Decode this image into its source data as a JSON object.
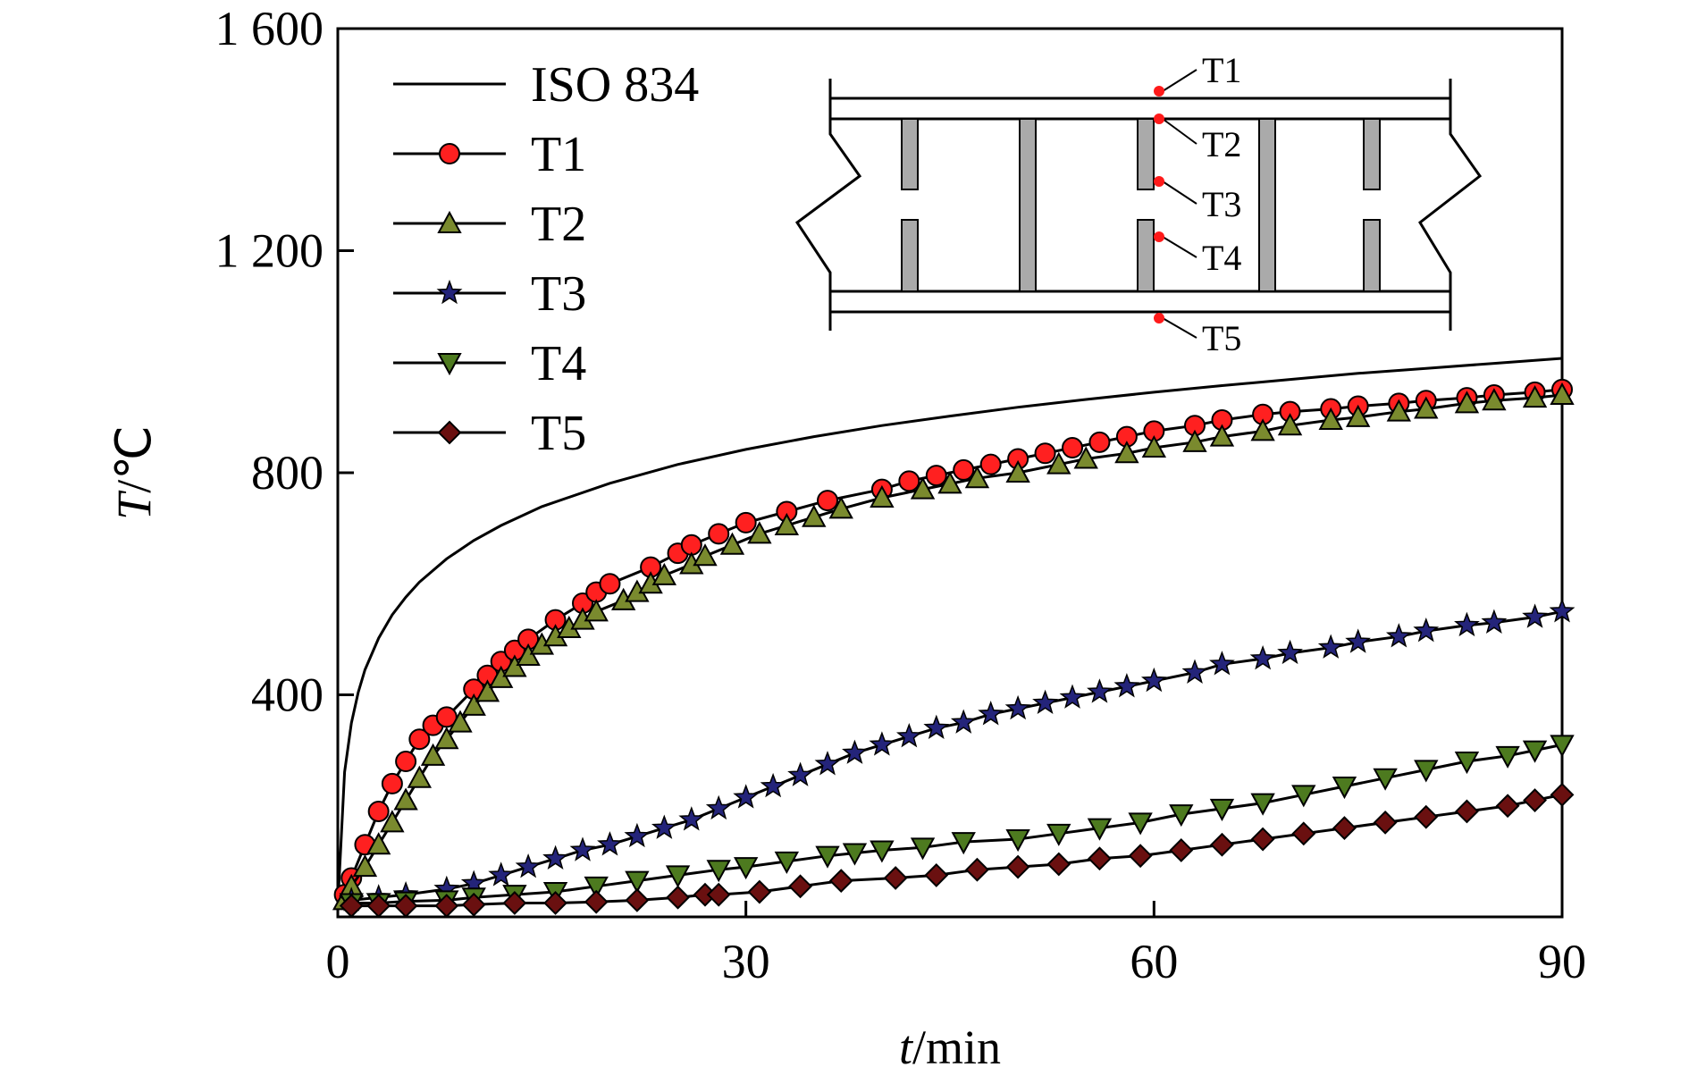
{
  "chart_data": {
    "type": "line",
    "xlabel_italic": "t",
    "xlabel_unit": "/min",
    "ylabel_italic": "T",
    "ylabel_unit": "/℃",
    "xlim": [
      0,
      90
    ],
    "ylim": [
      0,
      1600
    ],
    "x_ticks": [
      0,
      30,
      60,
      90
    ],
    "x_tick_labels": [
      "0",
      "30",
      "60",
      "90"
    ],
    "y_ticks": [
      400,
      800,
      1200,
      1600
    ],
    "y_tick_labels": [
      "400",
      "800",
      "1 200",
      "1 600"
    ],
    "grid": false,
    "legend_position": "top-left",
    "series": [
      {
        "name": "ISO 834",
        "marker": "none",
        "color": "#000000",
        "x": [
          0,
          0.5,
          1,
          1.5,
          2,
          3,
          4,
          5,
          6,
          8,
          10,
          12,
          15,
          20,
          25,
          30,
          35,
          40,
          45,
          50,
          55,
          60,
          65,
          70,
          75,
          80,
          85,
          90
        ],
        "y": [
          20,
          261,
          349,
          404,
          445,
          502,
          544,
          576,
          603,
          645,
          678,
          705,
          739,
          781,
          815,
          842,
          865,
          885,
          902,
          918,
          932,
          945,
          957,
          968,
          979,
          988,
          997,
          1006
        ]
      },
      {
        "name": "T1",
        "marker": "circle",
        "color": "#ff2020",
        "x": [
          0.5,
          1,
          2,
          3,
          4,
          5,
          6,
          7,
          8,
          10,
          11,
          12,
          13,
          14,
          16,
          18,
          19,
          20,
          23,
          25,
          26,
          28,
          30,
          33,
          36,
          40,
          42,
          44,
          46,
          48,
          50,
          52,
          54,
          56,
          58,
          60,
          63,
          65,
          68,
          70,
          73,
          75,
          78,
          80,
          83,
          85,
          88,
          90
        ],
        "y": [
          40,
          70,
          130,
          190,
          240,
          280,
          320,
          345,
          360,
          410,
          435,
          460,
          480,
          500,
          535,
          565,
          585,
          600,
          630,
          655,
          670,
          690,
          710,
          730,
          750,
          770,
          785,
          795,
          805,
          815,
          825,
          835,
          845,
          855,
          865,
          875,
          885,
          895,
          905,
          910,
          915,
          920,
          925,
          930,
          935,
          940,
          945,
          950
        ]
      },
      {
        "name": "T2",
        "marker": "triangle-up",
        "color": "#7a8a2e",
        "x": [
          0.5,
          1,
          2,
          3,
          4,
          5,
          6,
          7,
          8,
          9,
          10,
          11,
          12,
          13,
          14,
          15,
          16,
          17,
          18,
          19,
          21,
          22,
          23,
          24,
          26,
          27,
          29,
          31,
          33,
          35,
          37,
          40,
          43,
          45,
          47,
          50,
          53,
          55,
          58,
          60,
          63,
          65,
          68,
          70,
          73,
          75,
          78,
          80,
          83,
          85,
          88,
          90
        ],
        "y": [
          30,
          55,
          90,
          130,
          170,
          210,
          250,
          290,
          320,
          350,
          380,
          405,
          430,
          450,
          470,
          490,
          505,
          520,
          535,
          550,
          570,
          585,
          600,
          615,
          635,
          650,
          670,
          690,
          705,
          720,
          735,
          755,
          770,
          780,
          790,
          800,
          815,
          825,
          835,
          845,
          855,
          865,
          875,
          885,
          895,
          900,
          910,
          915,
          925,
          930,
          935,
          940
        ]
      },
      {
        "name": "T3",
        "marker": "star",
        "color": "#24247a",
        "x": [
          1,
          3,
          5,
          8,
          10,
          12,
          14,
          16,
          18,
          20,
          22,
          24,
          26,
          28,
          30,
          32,
          34,
          36,
          38,
          40,
          42,
          44,
          46,
          48,
          50,
          52,
          54,
          56,
          58,
          60,
          63,
          65,
          68,
          70,
          73,
          75,
          78,
          80,
          83,
          85,
          88,
          90
        ],
        "y": [
          30,
          35,
          40,
          50,
          60,
          75,
          90,
          105,
          120,
          130,
          145,
          160,
          175,
          195,
          215,
          235,
          255,
          275,
          295,
          310,
          325,
          340,
          350,
          365,
          375,
          385,
          395,
          405,
          415,
          425,
          440,
          455,
          465,
          475,
          485,
          495,
          505,
          515,
          525,
          530,
          540,
          550
        ]
      },
      {
        "name": "T4",
        "marker": "triangle-down",
        "color": "#4d7a1f",
        "x": [
          1,
          3,
          5,
          8,
          10,
          13,
          16,
          19,
          22,
          25,
          28,
          30,
          33,
          36,
          38,
          40,
          43,
          46,
          50,
          53,
          56,
          59,
          62,
          65,
          68,
          71,
          74,
          77,
          80,
          83,
          86,
          88,
          90
        ],
        "y": [
          25,
          25,
          28,
          30,
          35,
          40,
          45,
          55,
          65,
          75,
          85,
          90,
          100,
          110,
          115,
          120,
          125,
          135,
          140,
          150,
          160,
          170,
          185,
          195,
          205,
          220,
          235,
          250,
          265,
          280,
          290,
          300,
          310
        ]
      },
      {
        "name": "T5",
        "marker": "diamond",
        "color": "#6a1010",
        "x": [
          1,
          3,
          5,
          8,
          10,
          13,
          16,
          19,
          22,
          25,
          27,
          28,
          31,
          34,
          37,
          41,
          44,
          47,
          50,
          53,
          56,
          59,
          62,
          65,
          68,
          71,
          74,
          77,
          80,
          83,
          86,
          88,
          90
        ],
        "y": [
          20,
          20,
          20,
          20,
          22,
          25,
          25,
          27,
          30,
          35,
          40,
          40,
          45,
          55,
          65,
          70,
          75,
          85,
          90,
          95,
          105,
          110,
          120,
          130,
          140,
          150,
          160,
          170,
          180,
          190,
          200,
          210,
          220
        ]
      }
    ],
    "inset": {
      "labels": [
        "T1",
        "T2",
        "T3",
        "T4",
        "T5"
      ]
    }
  }
}
